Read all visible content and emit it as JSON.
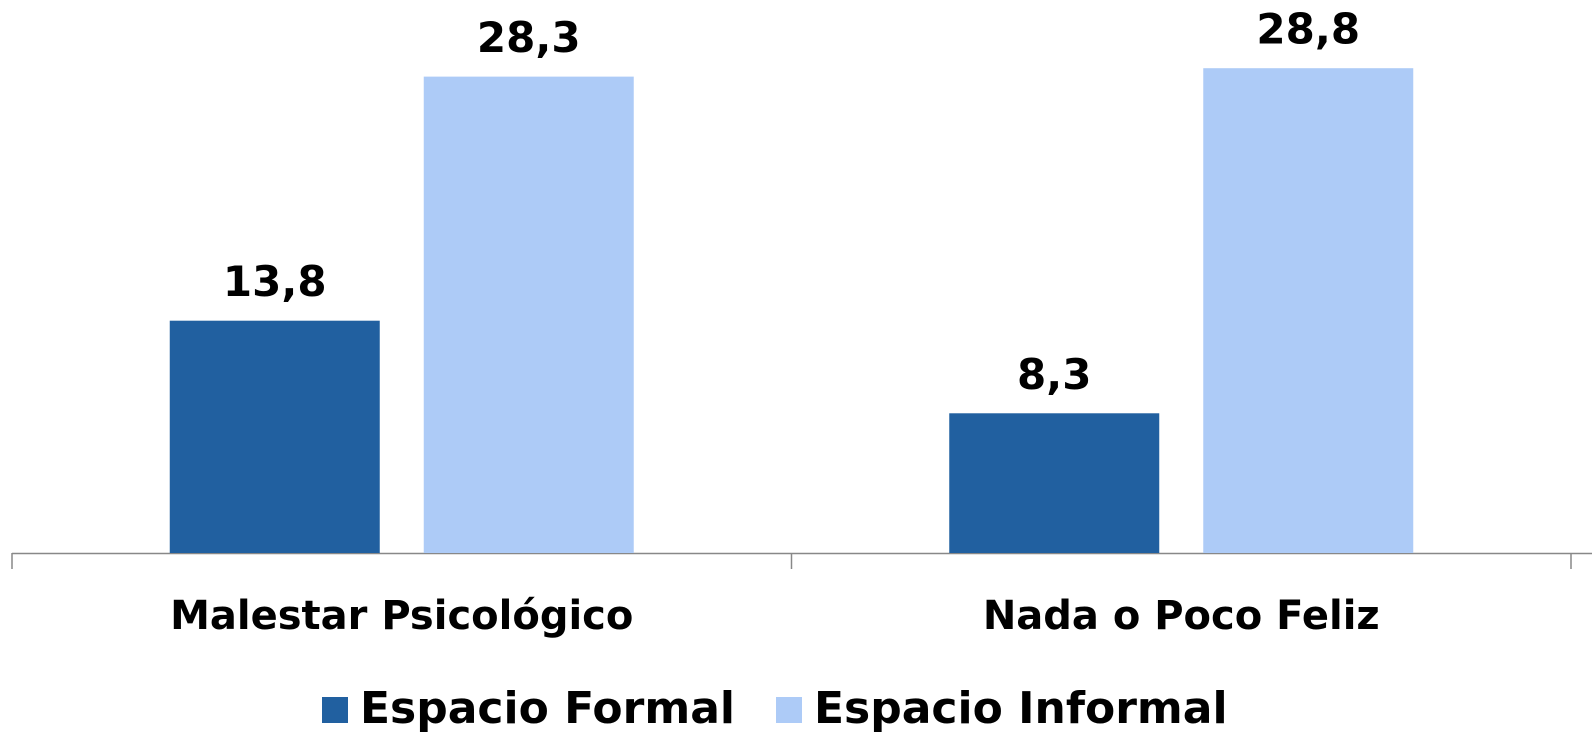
{
  "chart_data": {
    "type": "bar",
    "categories": [
      "Malestar Psicológico",
      "Nada o Poco Feliz"
    ],
    "series": [
      {
        "name": "Espacio Formal",
        "color": "#2160a0",
        "values": [
          13.8,
          8.3
        ],
        "value_labels": [
          "13,8",
          "8,3"
        ]
      },
      {
        "name": "Espacio Informal",
        "color": "#adcbf7",
        "values": [
          28.3,
          28.8
        ],
        "value_labels": [
          "28,3",
          "28,8"
        ]
      }
    ],
    "ylim": [
      0,
      30
    ]
  }
}
